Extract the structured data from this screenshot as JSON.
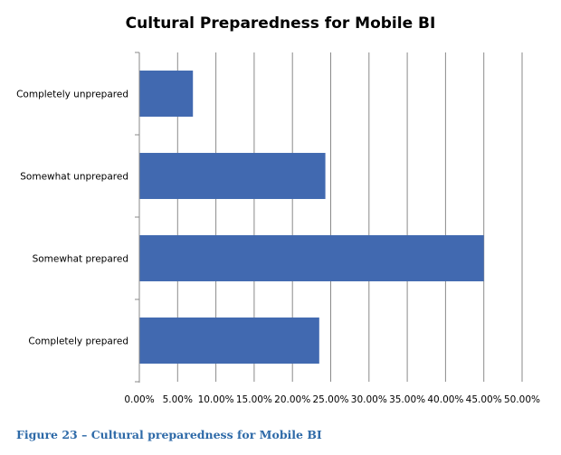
{
  "chart_data": {
    "type": "bar",
    "orientation": "horizontal",
    "title": "Cultural Preparedness for Mobile BI",
    "categories": [
      "Completely unprepared",
      "Somewhat unprepared",
      "Somewhat prepared",
      "Completely prepared"
    ],
    "values": [
      7.0,
      24.3,
      45.0,
      23.5
    ],
    "value_unit": "%",
    "xlim": [
      0,
      50
    ],
    "x_ticks": [
      "0.00%",
      "5.00%",
      "10.00%",
      "15.00%",
      "20.00%",
      "25.00%",
      "30.00%",
      "35.00%",
      "40.00%",
      "45.00%",
      "50.00%"
    ],
    "grid": "vertical",
    "bar_color": "#4169b0",
    "xlabel": "",
    "ylabel": ""
  },
  "caption": "Figure 23 – Cultural preparedness for Mobile BI"
}
